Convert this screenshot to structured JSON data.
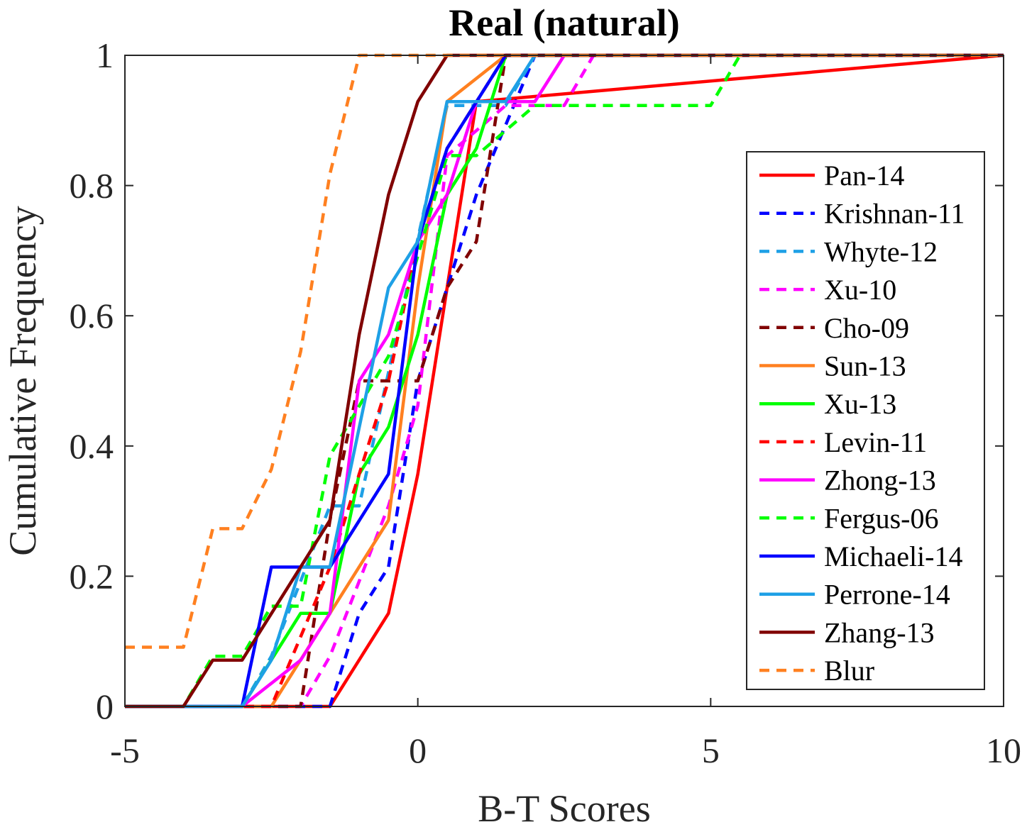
{
  "chart_data": {
    "type": "line",
    "title": "Real (natural)",
    "xlabel": "B-T Scores",
    "ylabel": "Cumulative Frequency",
    "xlim": [
      -5,
      10
    ],
    "ylim": [
      0,
      1
    ],
    "xticks": [
      -5,
      0,
      5,
      10
    ],
    "xtick_labels": [
      "-5",
      "0",
      "5",
      "10"
    ],
    "yticks": [
      0,
      0.2,
      0.4,
      0.6,
      0.8,
      1
    ],
    "ytick_labels": [
      "0",
      "0.2",
      "0.4",
      "0.6",
      "0.8",
      "1"
    ],
    "grid": false,
    "legend_position": "right",
    "series": [
      {
        "name": "Pan-14",
        "color": "#ff0000",
        "dash": "solid",
        "x": [
          -5,
          -1.5,
          -0.5,
          0,
          1,
          10
        ],
        "y": [
          0,
          0,
          0.143,
          0.357,
          0.929,
          1
        ]
      },
      {
        "name": "Krishnan-11",
        "color": "#0000ff",
        "dash": "dashed",
        "x": [
          -5,
          -1.5,
          -1,
          -0.5,
          0,
          1,
          2,
          10
        ],
        "y": [
          0,
          0,
          0.143,
          0.214,
          0.5,
          0.786,
          1,
          1
        ]
      },
      {
        "name": "Whyte-12",
        "color": "#1ea0e6",
        "dash": "dashed",
        "x": [
          -5,
          -3,
          -2.5,
          -1.5,
          -1,
          0.5,
          1.5,
          2,
          10
        ],
        "y": [
          0,
          0,
          0.077,
          0.308,
          0.308,
          0.923,
          0.923,
          1,
          1
        ]
      },
      {
        "name": "Xu-10",
        "color": "#ff00ff",
        "dash": "dashed",
        "x": [
          -5,
          -2,
          -1.5,
          -0.5,
          0,
          0.5,
          1.5,
          2.5,
          3,
          10
        ],
        "y": [
          0,
          0,
          0.077,
          0.308,
          0.462,
          0.846,
          0.923,
          0.923,
          1,
          1
        ]
      },
      {
        "name": "Cho-09",
        "color": "#800000",
        "dash": "dashed",
        "x": [
          -5,
          -2,
          -1.5,
          -1,
          -0.5,
          0,
          0.5,
          1,
          1.5,
          10
        ],
        "y": [
          0,
          0,
          0.286,
          0.5,
          0.5,
          0.5,
          0.643,
          0.714,
          1,
          1
        ]
      },
      {
        "name": "Sun-13",
        "color": "#ff8020",
        "dash": "solid",
        "x": [
          -5,
          -2.5,
          -1.5,
          -0.5,
          0,
          0.5,
          1.5,
          10
        ],
        "y": [
          0,
          0,
          0.143,
          0.286,
          0.643,
          0.929,
          1,
          1
        ]
      },
      {
        "name": "Xu-13",
        "color": "#00ff00",
        "dash": "solid",
        "x": [
          -5,
          -3,
          -2,
          -1.5,
          -1,
          -0.5,
          0,
          0.5,
          1,
          1.5,
          10
        ],
        "y": [
          0,
          0,
          0.143,
          0.143,
          0.357,
          0.429,
          0.571,
          0.786,
          0.857,
          1,
          1
        ]
      },
      {
        "name": "Levin-11",
        "color": "#ff0000",
        "dash": "dashed",
        "x": [
          -5,
          -2.5,
          -1.5,
          -0.5,
          0,
          0.5,
          1.5,
          10
        ],
        "y": [
          0,
          0,
          0.214,
          0.5,
          0.714,
          0.857,
          1,
          1
        ]
      },
      {
        "name": "Zhong-13",
        "color": "#ff00ff",
        "dash": "solid",
        "x": [
          -5,
          -3,
          -2,
          -1.5,
          -1,
          -0.5,
          0,
          0.5,
          1,
          2,
          2.5,
          10
        ],
        "y": [
          0,
          0,
          0.071,
          0.143,
          0.5,
          0.571,
          0.714,
          0.786,
          0.929,
          0.929,
          1,
          1
        ]
      },
      {
        "name": "Fergus-06",
        "color": "#00ff00",
        "dash": "dashed",
        "x": [
          -5,
          -4,
          -3.5,
          -3,
          -2.5,
          -2,
          -1.5,
          -0.5,
          0.5,
          1,
          2,
          5,
          5.5,
          10
        ],
        "y": [
          0,
          0,
          0.077,
          0.077,
          0.154,
          0.154,
          0.385,
          0.538,
          0.846,
          0.846,
          0.923,
          0.923,
          1,
          1
        ]
      },
      {
        "name": "Michaeli-14",
        "color": "#0000ff",
        "dash": "solid",
        "x": [
          -5,
          -3,
          -2.5,
          -1.5,
          -0.5,
          0,
          0.5,
          1.5,
          10
        ],
        "y": [
          0,
          0,
          0.214,
          0.214,
          0.357,
          0.714,
          0.857,
          1,
          1
        ]
      },
      {
        "name": "Perrone-14",
        "color": "#1ea0e6",
        "dash": "solid",
        "x": [
          -5,
          -3,
          -2.5,
          -2,
          -1.5,
          -0.5,
          0,
          0.5,
          1.5,
          2,
          10
        ],
        "y": [
          0,
          0,
          0.071,
          0.214,
          0.214,
          0.643,
          0.714,
          0.929,
          0.929,
          1,
          1
        ]
      },
      {
        "name": "Zhang-13",
        "color": "#800000",
        "dash": "solid",
        "x": [
          -5,
          -4,
          -3.5,
          -3,
          -1.5,
          -1,
          -0.5,
          0,
          0.5,
          10
        ],
        "y": [
          0,
          0,
          0.071,
          0.071,
          0.286,
          0.571,
          0.786,
          0.929,
          1,
          1
        ]
      },
      {
        "name": "Blur",
        "color": "#ff8020",
        "dash": "dashed",
        "x": [
          -5,
          -4,
          -3.5,
          -3,
          -2.5,
          -2,
          -1.5,
          -1,
          10
        ],
        "y": [
          0.091,
          0.091,
          0.273,
          0.273,
          0.364,
          0.545,
          0.818,
          1,
          1
        ]
      }
    ]
  }
}
